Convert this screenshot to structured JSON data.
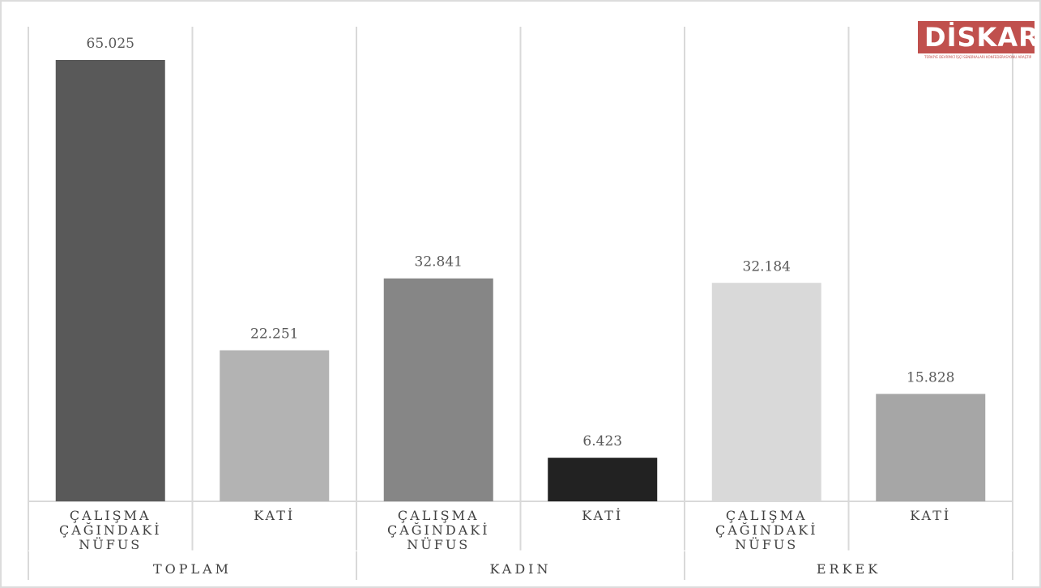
{
  "chart_data": {
    "type": "bar",
    "groups": [
      {
        "name": "TOPLAM",
        "categories": [
          "ÇALIŞMA ÇAĞINDAKİ NÜFUS",
          "KATİ"
        ],
        "values": [
          65.025,
          22.251
        ],
        "labels": [
          "65.025",
          "22.251"
        ]
      },
      {
        "name": "KADIN",
        "categories": [
          "ÇALIŞMA ÇAĞINDAKİ NÜFUS",
          "KATİ"
        ],
        "values": [
          32.841,
          6.423
        ],
        "labels": [
          "32.841",
          "6.423"
        ]
      },
      {
        "name": "ERKEK",
        "categories": [
          "ÇALIŞMA ÇAĞINDAKİ NÜFUS",
          "KATİ"
        ],
        "values": [
          32.184,
          15.828
        ],
        "labels": [
          "32.184",
          "15.828"
        ]
      }
    ],
    "category_lines": [
      [
        "ÇALIŞMA",
        "ÇAĞINDAKİ",
        "NÜFUS"
      ],
      [
        "KATİ"
      ]
    ],
    "bar_colors": [
      "#595959",
      "#b3b3b3",
      "#868686",
      "#222222",
      "#d9d9d9",
      "#a6a6a6"
    ],
    "ylim": [
      0,
      65.025
    ],
    "grid": true
  },
  "logo": {
    "text": "DİSKAR",
    "subtitle": "TÜRKİYE DEVRİMCİ İŞÇİ SENDİKALARI KONFEDERASYONU ARAŞTIRMA MERKEZİ"
  }
}
